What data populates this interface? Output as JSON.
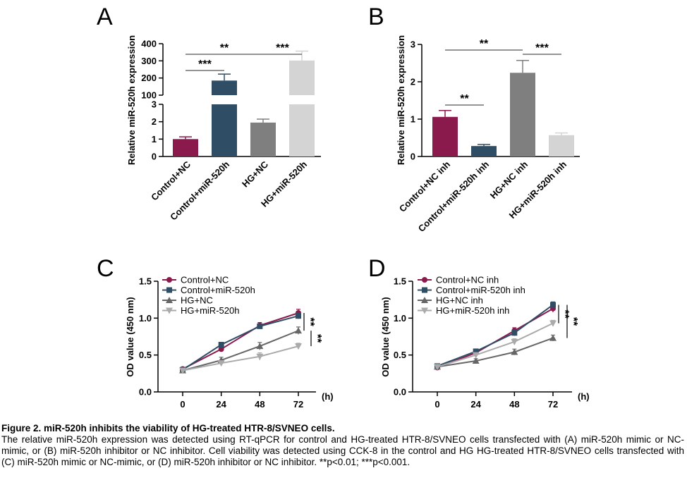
{
  "chart_data": [
    {
      "id": "A",
      "type": "bar",
      "panel_letter": "A",
      "ylabel": "Relative miR-520h expression",
      "categories": [
        "Control+NC",
        "Control+miR-520h",
        "HG+NC",
        "HG+miR-520h"
      ],
      "values": [
        1.0,
        185,
        1.95,
        302
      ],
      "errors": [
        0.13,
        38,
        0.2,
        55
      ],
      "colors": [
        "#8b1a4c",
        "#2f4e66",
        "#7f7f7f",
        "#d4d4d4"
      ],
      "axis_break": {
        "lower": [
          0,
          3
        ],
        "upper": [
          100,
          400
        ]
      },
      "yticks_lower": [
        "0",
        "1",
        "2",
        "3"
      ],
      "yticks_upper": [
        "100",
        "200",
        "300",
        "400"
      ],
      "significance": [
        {
          "from": 0,
          "to": 1,
          "label": "***"
        },
        {
          "from": 0,
          "to": 2,
          "label": "**"
        },
        {
          "from": 2,
          "to": 3,
          "label": "***"
        }
      ]
    },
    {
      "id": "B",
      "type": "bar",
      "panel_letter": "B",
      "ylabel": "Relative miR-520h expression",
      "categories": [
        "Control+NC inh",
        "Control+miR-520h inh",
        "HG+NC inh",
        "HG+miR-520h inh"
      ],
      "values": [
        1.06,
        0.28,
        2.24,
        0.57
      ],
      "errors": [
        0.17,
        0.04,
        0.33,
        0.06
      ],
      "colors": [
        "#8b1a4c",
        "#2f4e66",
        "#7f7f7f",
        "#d4d4d4"
      ],
      "ylim": [
        0,
        3
      ],
      "yticks": [
        "0",
        "1",
        "2",
        "3"
      ],
      "significance": [
        {
          "from": 0,
          "to": 1,
          "label": "**"
        },
        {
          "from": 0,
          "to": 2,
          "label": "**"
        },
        {
          "from": 2,
          "to": 3,
          "label": "***"
        }
      ]
    },
    {
      "id": "C",
      "type": "line",
      "panel_letter": "C",
      "ylabel": "OD value (450 nm)",
      "xunit": "(h)",
      "x": [
        0,
        24,
        48,
        72
      ],
      "xticks": [
        "0",
        "24",
        "48",
        "72"
      ],
      "ylim": [
        0,
        1.5
      ],
      "yticks": [
        "0.0",
        "0.5",
        "1.0",
        "1.5"
      ],
      "series": [
        {
          "name": "Control+NC",
          "values": [
            0.31,
            0.58,
            0.9,
            1.07
          ],
          "errors": [
            0.02,
            0.03,
            0.04,
            0.05
          ],
          "color": "#8b1a4c",
          "marker": "circle"
        },
        {
          "name": "Control+miR-520h",
          "values": [
            0.3,
            0.64,
            0.89,
            1.03
          ],
          "errors": [
            0.02,
            0.03,
            0.03,
            0.04
          ],
          "color": "#2f4e66",
          "marker": "square"
        },
        {
          "name": "HG+NC",
          "values": [
            0.29,
            0.43,
            0.62,
            0.83
          ],
          "errors": [
            0.02,
            0.04,
            0.05,
            0.05
          ],
          "color": "#666666",
          "marker": "triangle-up"
        },
        {
          "name": "HG+miR-520h",
          "values": [
            0.29,
            0.39,
            0.48,
            0.62
          ],
          "errors": [
            0.02,
            0.03,
            0.05,
            0.04
          ],
          "color": "#aaaaaa",
          "marker": "triangle-down"
        }
      ],
      "significance": [
        {
          "between": [
            0,
            2
          ],
          "label": "**"
        },
        {
          "between": [
            2,
            3
          ],
          "label": "**"
        }
      ]
    },
    {
      "id": "D",
      "type": "line",
      "panel_letter": "D",
      "ylabel": "OD value (450 nm)",
      "xunit": "(h)",
      "x": [
        0,
        24,
        48,
        72
      ],
      "xticks": [
        "0",
        "24",
        "48",
        "72"
      ],
      "ylim": [
        0,
        1.5
      ],
      "yticks": [
        "0.0",
        "0.5",
        "1.0",
        "1.5"
      ],
      "series": [
        {
          "name": "Control+NC inh",
          "values": [
            0.33,
            0.53,
            0.83,
            1.13
          ],
          "errors": [
            0.02,
            0.03,
            0.04,
            0.05
          ],
          "color": "#8b1a4c",
          "marker": "circle"
        },
        {
          "name": "Control+miR-520h inh",
          "values": [
            0.35,
            0.55,
            0.8,
            1.18
          ],
          "errors": [
            0.02,
            0.03,
            0.04,
            0.04
          ],
          "color": "#2f4e66",
          "marker": "square"
        },
        {
          "name": "HG+NC inh",
          "values": [
            0.34,
            0.42,
            0.54,
            0.73
          ],
          "errors": [
            0.02,
            0.03,
            0.04,
            0.04
          ],
          "color": "#666666",
          "marker": "triangle-up"
        },
        {
          "name": "HG+miR-520h inh",
          "values": [
            0.34,
            0.5,
            0.68,
            0.93
          ],
          "errors": [
            0.02,
            0.03,
            0.04,
            0.04
          ],
          "color": "#aaaaaa",
          "marker": "triangle-down"
        }
      ],
      "significance": [
        {
          "between": [
            1,
            3
          ],
          "label": "**"
        },
        {
          "between": [
            1,
            2
          ],
          "label": "**"
        }
      ]
    }
  ],
  "caption": {
    "title": "Figure 2. miR-520h inhibits the viability of HG-treated HTR-8/SVNEO cells.",
    "body": "The relative miR-520h expression was detected using RT-qPCR for control and HG-treated HTR-8/SVNEO cells transfected with (A) miR-520h mimic or NC-mimic, or (B) miR-520h inhibitor or NC inhibitor. Cell viability was detected using CCK-8 in the control and HG HG-treated HTR-8/SVNEO cells transfected with (C) miR-520h mimic or NC-mimic, or (D) miR-520h inhibitor or NC inhibitor. **p<0.01; ***p<0.001."
  }
}
